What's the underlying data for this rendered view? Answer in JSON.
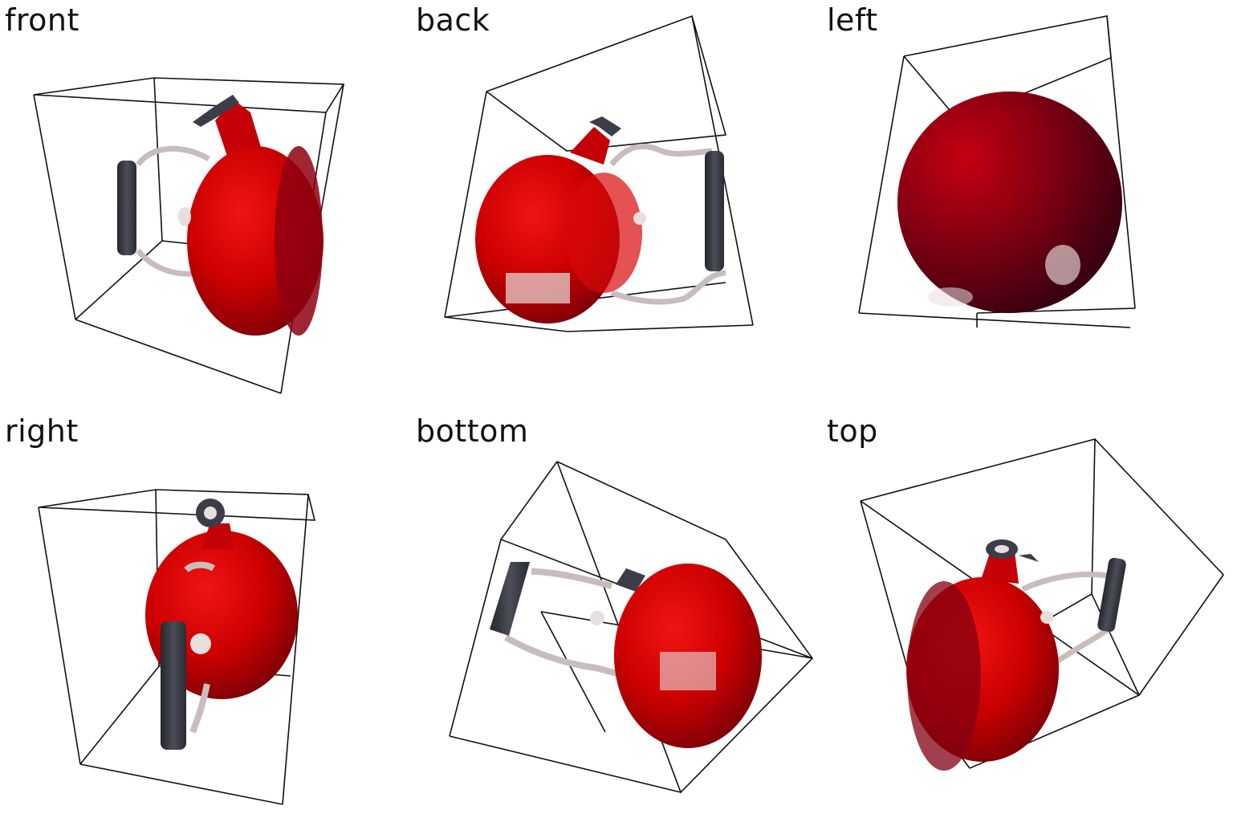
{
  "views": [
    {
      "label": "front"
    },
    {
      "label": "back"
    },
    {
      "label": "left"
    },
    {
      "label": "right"
    },
    {
      "label": "bottom"
    },
    {
      "label": "top"
    }
  ],
  "colors": {
    "body_red": "#cc0000",
    "body_dark": "#4a0010",
    "handle_dark": "#3b3d48",
    "metal_strap": "#c9bcbc",
    "knob": "#e9dede",
    "box_line": "#111111"
  },
  "icons": [
    "kettle-render"
  ]
}
